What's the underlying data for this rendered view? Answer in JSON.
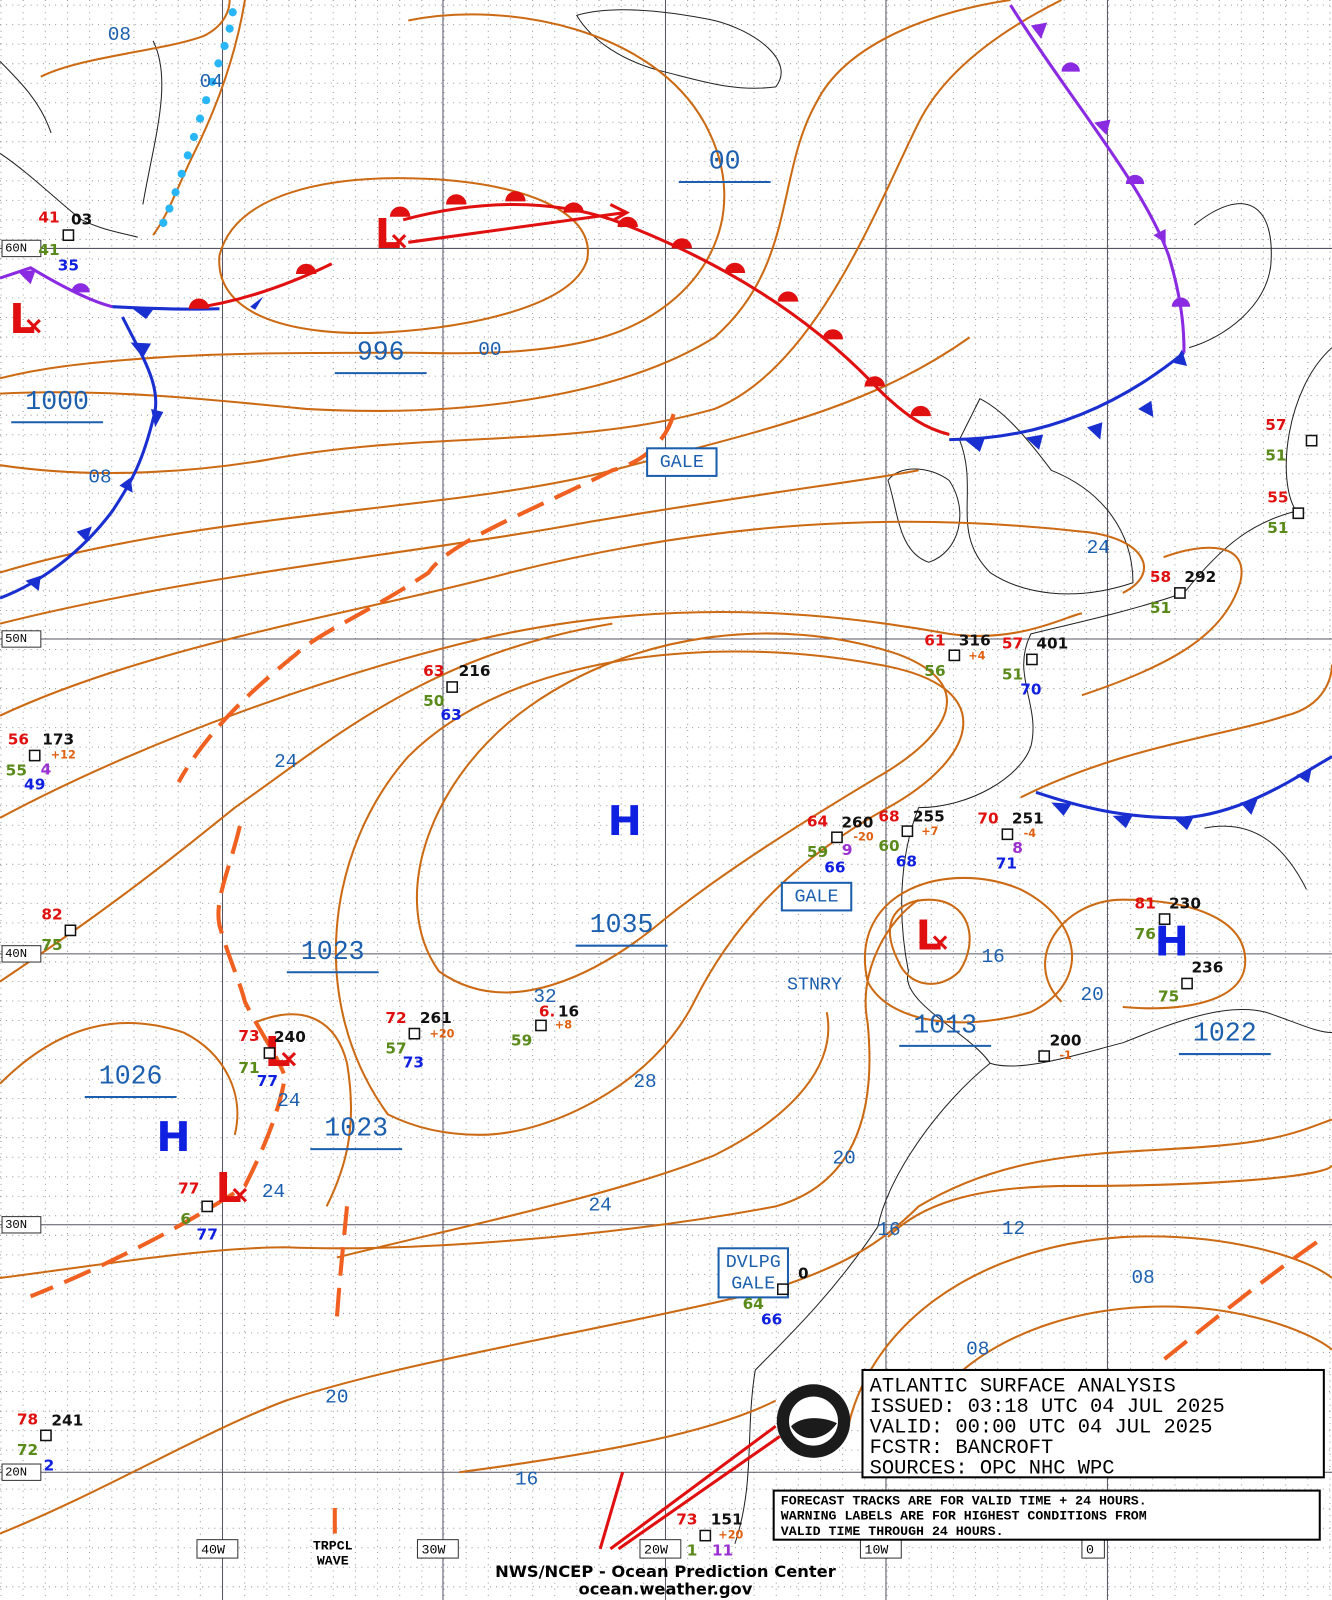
{
  "header": {
    "title_box": [
      "ATLANTIC SURFACE ANALYSIS",
      "ISSUED: 03:18 UTC 04 JUL 2025",
      "VALID:  00:00 UTC 04 JUL 2025",
      "FCSTR:  BANCROFT",
      "SOURCES: OPC NHC WPC"
    ],
    "note": [
      "FORECAST TRACKS ARE FOR VALID TIME + 24 HOURS.",
      "WARNING LABELS ARE FOR HIGHEST CONDITIONS FROM",
      "VALID TIME THROUGH 24 HOURS."
    ],
    "footer": [
      "NWS/NCEP - Ocean Prediction Center",
      "ocean.weather.gov"
    ]
  },
  "grid": {
    "latitudes": [
      "60N",
      "50N",
      "40N",
      "30N",
      "20N"
    ],
    "longitudes": [
      "40W",
      "30W",
      "20W",
      "10W",
      "0"
    ]
  },
  "central_pressures": [
    "00",
    "996",
    "1000",
    "1035",
    "1023",
    "1013",
    "1022",
    "1026",
    "1023"
  ],
  "isobar_labels": [
    "08",
    "04",
    "00",
    "08",
    "24",
    "24",
    "32",
    "16",
    "20",
    "24",
    "28",
    "20",
    "24",
    "24",
    "16",
    "12",
    "08",
    "08",
    "20",
    "16"
  ],
  "lows": [
    "L",
    "L",
    "L",
    "L",
    "L"
  ],
  "highs": [
    "H",
    "H",
    "H"
  ],
  "warnings": [
    [
      "GALE"
    ],
    [
      "GALE"
    ],
    [
      "DVLPG",
      "GALE"
    ]
  ],
  "labels": [
    "STNRY"
  ],
  "trpcl_wave": [
    "TRPCL",
    "WAVE"
  ],
  "stations": [
    [
      "41",
      "03",
      "41",
      "35"
    ],
    [
      "56",
      "173",
      "+12",
      "55",
      "4",
      "49"
    ],
    [
      "63",
      "216",
      "50",
      "63"
    ],
    [
      "82",
      "75"
    ],
    [
      "73",
      "240",
      "71",
      "77"
    ],
    [
      "72",
      "261",
      "+20",
      "57",
      "73"
    ],
    [
      "6.",
      "16",
      "+8",
      "59"
    ],
    [
      "77",
      "6",
      "77"
    ],
    [
      "78",
      "241",
      "72",
      "2"
    ],
    [
      "73",
      "151",
      "+20",
      "1",
      "11"
    ],
    [
      "64",
      "260",
      "-20",
      "59",
      "9",
      "66"
    ],
    [
      "68",
      "255",
      "+7",
      "60",
      "68"
    ],
    [
      "70",
      "251",
      "-4",
      "8",
      "71"
    ],
    [
      "61",
      "316",
      "+4",
      "56"
    ],
    [
      "57",
      "401",
      "51",
      "70"
    ],
    [
      "58",
      "292",
      "51"
    ],
    [
      "57",
      "51"
    ],
    [
      "55",
      "51"
    ],
    [
      "81",
      "230",
      "76"
    ],
    [
      "236",
      "75"
    ],
    [
      "200",
      "-1"
    ],
    [
      "0",
      "64",
      "66"
    ]
  ]
}
